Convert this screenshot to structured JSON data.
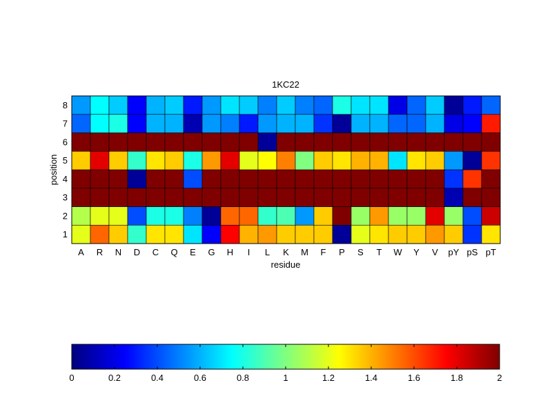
{
  "chart_data": {
    "type": "heatmap",
    "title": "1KC22",
    "xlabel": "residue",
    "ylabel": "position",
    "x_categories": [
      "A",
      "R",
      "N",
      "D",
      "C",
      "Q",
      "E",
      "G",
      "H",
      "I",
      "L",
      "K",
      "M",
      "F",
      "P",
      "S",
      "T",
      "W",
      "Y",
      "V",
      "pY",
      "pS",
      "pT"
    ],
    "y_categories": [
      "1",
      "2",
      "3",
      "4",
      "5",
      "6",
      "7",
      "8"
    ],
    "colormap": "jet",
    "clim": [
      0,
      2
    ],
    "colorbar": {
      "ticks": [
        0,
        0.2,
        0.4,
        0.6,
        0.8,
        1,
        1.2,
        1.4,
        1.6,
        1.8,
        2
      ],
      "tick_labels": [
        "0",
        "0.2",
        "0.4",
        "0.6",
        "0.8",
        "1",
        "1.2",
        "1.4",
        "1.6",
        "1.8",
        "2"
      ],
      "placement": "bottom"
    },
    "values": [
      [
        1.2,
        1.55,
        1.35,
        0.85,
        1.3,
        1.3,
        0.7,
        0.25,
        1.75,
        1.4,
        1.45,
        1.35,
        1.35,
        1.35,
        0.05,
        1.2,
        1.3,
        1.35,
        1.35,
        1.45,
        1.35,
        0.35,
        1.3
      ],
      [
        1.1,
        1.2,
        1.2,
        0.4,
        0.8,
        0.8,
        0.5,
        0.05,
        1.55,
        1.55,
        0.85,
        0.9,
        0.55,
        1.35,
        2.0,
        1.05,
        1.45,
        1.05,
        1.05,
        1.8,
        1.05,
        0.4,
        1.85
      ],
      [
        2.0,
        2.0,
        2.0,
        2.0,
        2.0,
        2.0,
        2.0,
        2.0,
        2.0,
        2.0,
        2.0,
        2.0,
        2.0,
        2.0,
        2.0,
        2.0,
        2.0,
        2.0,
        2.0,
        2.0,
        0.1,
        2.0,
        2.0
      ],
      [
        2.0,
        2.0,
        2.0,
        0.05,
        2.0,
        2.0,
        0.4,
        2.0,
        2.0,
        2.0,
        2.0,
        2.0,
        2.0,
        2.0,
        2.0,
        2.0,
        2.0,
        2.0,
        2.0,
        2.0,
        0.35,
        1.65,
        2.0
      ],
      [
        1.35,
        1.8,
        1.35,
        0.85,
        1.3,
        1.35,
        0.8,
        1.45,
        1.8,
        1.2,
        1.25,
        1.5,
        1.0,
        1.35,
        1.3,
        1.4,
        1.4,
        0.7,
        1.3,
        1.35,
        0.55,
        0.05,
        1.65
      ],
      [
        2.0,
        2.0,
        2.0,
        2.0,
        2.0,
        2.0,
        2.0,
        2.0,
        2.0,
        2.0,
        0.05,
        2.0,
        2.0,
        2.0,
        2.0,
        2.0,
        2.0,
        2.0,
        2.0,
        2.0,
        2.0,
        2.0,
        2.0
      ],
      [
        0.45,
        0.75,
        0.8,
        0.25,
        0.6,
        0.6,
        0.1,
        0.55,
        0.5,
        0.3,
        0.55,
        0.6,
        0.6,
        0.35,
        0.05,
        0.6,
        0.6,
        0.45,
        0.45,
        0.6,
        0.2,
        0.25,
        1.7
      ],
      [
        0.55,
        0.75,
        0.65,
        0.25,
        0.6,
        0.65,
        0.3,
        0.55,
        0.7,
        0.65,
        0.5,
        0.65,
        0.5,
        0.45,
        0.8,
        0.7,
        0.7,
        0.2,
        0.45,
        0.65,
        0.05,
        0.3,
        0.45
      ]
    ]
  }
}
